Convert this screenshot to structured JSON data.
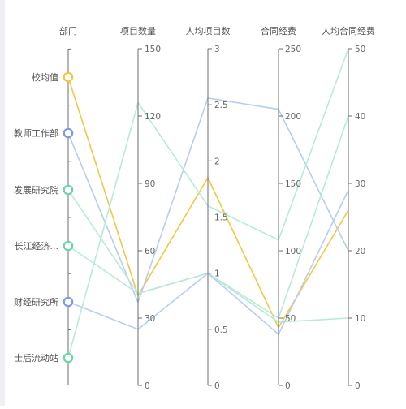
{
  "chart_data": {
    "type": "parallel",
    "axes": [
      {
        "name": "部门",
        "kind": "category",
        "categories": [
          "校均值",
          "教师工作部",
          "发展研究院",
          "长江经济...",
          "财经研究所",
          "士后流动站"
        ]
      },
      {
        "name": "项目数量",
        "kind": "value",
        "min": 0,
        "max": 150,
        "ticks": [
          0,
          30,
          60,
          90,
          120,
          150
        ]
      },
      {
        "name": "人均项目数",
        "kind": "value",
        "min": 0,
        "max": 3,
        "ticks": [
          0,
          0.5,
          1,
          1.5,
          2,
          2.5,
          3
        ]
      },
      {
        "name": "合同经费",
        "kind": "value",
        "min": 0,
        "max": 250,
        "ticks": [
          0,
          50,
          100,
          150,
          200,
          250
        ]
      },
      {
        "name": "人均合同经费",
        "kind": "value",
        "min": 0,
        "max": 50,
        "ticks": [
          0,
          10,
          20,
          30,
          40,
          50
        ]
      }
    ],
    "series": [
      {
        "category_index": 0,
        "values": [
          40,
          1.85,
          43,
          26
        ],
        "color": "#f2c744",
        "marker": "#f2c744"
      },
      {
        "category_index": 1,
        "values": [
          37,
          2.56,
          205,
          20
        ],
        "color": "#b7cdee",
        "marker": "#7b9ce8"
      },
      {
        "category_index": 2,
        "values": [
          41,
          1.0,
          50,
          40
        ],
        "color": "#b8ead8",
        "marker": "#6fd3aa"
      },
      {
        "category_index": 3,
        "values": [
          41,
          1.0,
          47,
          10
        ],
        "color": "#b8ead8",
        "marker": "#6fd3aa"
      },
      {
        "category_index": 4,
        "values": [
          25,
          1.0,
          38,
          29
        ],
        "color": "#b7cdee",
        "marker": "#7b9ce8"
      },
      {
        "category_index": 5,
        "values": [
          126,
          1.6,
          108,
          50
        ],
        "color": "#b8ead8",
        "marker": "#6fd3aa"
      }
    ]
  }
}
